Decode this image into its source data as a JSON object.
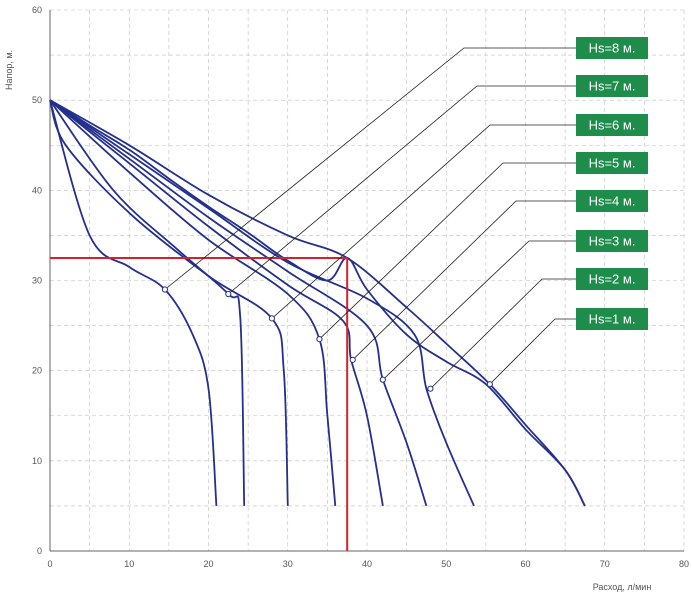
{
  "chart_data": {
    "type": "line",
    "xlabel": "Расход, л/мин",
    "ylabel": "Напор, м.",
    "xlim": [
      0,
      80
    ],
    "ylim": [
      0,
      60
    ],
    "xticks": [
      "0",
      "10",
      "20",
      "30",
      "40",
      "50",
      "60",
      "70",
      "80"
    ],
    "yticks": [
      "0",
      "10",
      "20",
      "30",
      "40",
      "50",
      "60"
    ],
    "grid": "dashed",
    "pump_curve": {
      "name": "",
      "x": [
        0,
        5,
        10,
        15,
        20,
        25,
        30,
        35,
        37.5,
        40,
        45,
        50,
        55,
        60,
        65,
        67.5
      ],
      "y": [
        50,
        47.2,
        44.5,
        41.3,
        38.2,
        35.3,
        32.2,
        30.0,
        32.5,
        29.0,
        24.0,
        21.0,
        18.5,
        13.5,
        9.0,
        5.0
      ]
    },
    "series": [
      {
        "name": "Hs=8 м.",
        "x": [
          0,
          5,
          10,
          14.5,
          18,
          20,
          21
        ],
        "y": [
          50,
          35,
          31.5,
          29,
          24,
          18,
          5
        ]
      },
      {
        "name": "Hs=7 м.",
        "x": [
          0,
          8,
          16,
          22.5,
          24,
          24.5
        ],
        "y": [
          50,
          40,
          33.5,
          28.5,
          26,
          5
        ]
      },
      {
        "name": "Hs=6 м.",
        "x": [
          0,
          2,
          10,
          20,
          28,
          29.5,
          30
        ],
        "y": [
          50,
          45,
          37.5,
          30.5,
          25.8,
          20,
          5
        ]
      },
      {
        "name": "Hs=5 м.",
        "x": [
          0,
          10,
          20,
          30,
          34,
          35,
          36
        ],
        "y": [
          50,
          42,
          34.5,
          28.5,
          23.5,
          15,
          5
        ]
      },
      {
        "name": "Hs=4 м.",
        "x": [
          0,
          10,
          20,
          30,
          37,
          38,
          40,
          42
        ],
        "y": [
          50,
          43,
          36,
          29.5,
          25.5,
          21.2,
          15,
          5
        ]
      },
      {
        "name": "Hs=3 м.",
        "x": [
          0,
          10,
          20,
          30,
          40,
          42,
          45,
          47.5
        ],
        "y": [
          50,
          43.5,
          37,
          31,
          25,
          19,
          12,
          5
        ]
      },
      {
        "name": "Hs=2 м.",
        "x": [
          0,
          10,
          20,
          30,
          40,
          46,
          47.5,
          50,
          53.5
        ],
        "y": [
          50,
          44,
          38,
          32,
          28,
          24,
          18,
          12,
          5
        ]
      },
      {
        "name": "Hs=1 м.",
        "x": [
          0,
          10,
          20,
          30,
          37.5,
          45,
          50,
          55.5,
          60,
          65,
          67.5
        ],
        "y": [
          50,
          45,
          39.5,
          35,
          32.5,
          27,
          23,
          18.5,
          14,
          9,
          5
        ]
      }
    ],
    "markers": [
      {
        "x": 14.5,
        "y": 29
      },
      {
        "x": 22.5,
        "y": 28.5
      },
      {
        "x": 28,
        "y": 25.8
      },
      {
        "x": 34,
        "y": 23.5
      },
      {
        "x": 38.2,
        "y": 21.2
      },
      {
        "x": 42,
        "y": 19
      },
      {
        "x": 48,
        "y": 18
      },
      {
        "x": 55.5,
        "y": 18.5
      }
    ],
    "operating_point": {
      "x": 37.5,
      "y": 32.5
    },
    "colors": {
      "curves": "#23308c",
      "reference": "#d6212a",
      "label_bg": "#1e8c4a",
      "grid": "#bfbfbf"
    }
  }
}
